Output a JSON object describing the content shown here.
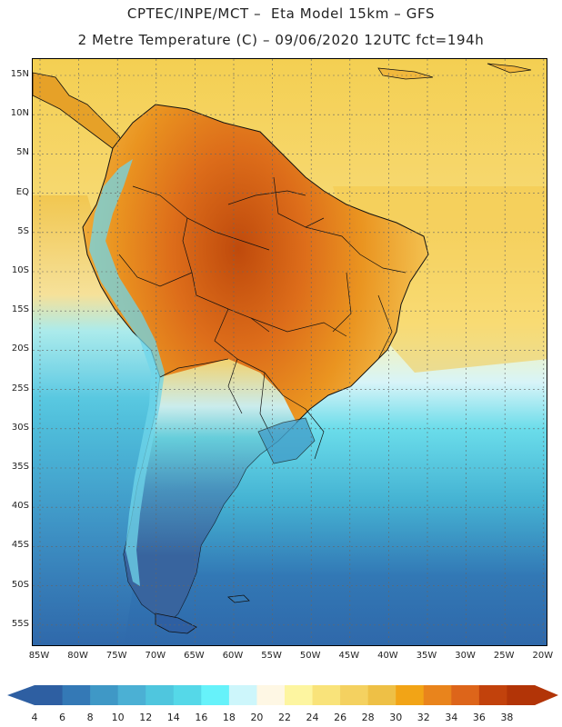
{
  "title": {
    "line1": "CPTEC/INPE/MCT –  Eta Model 15km – GFS",
    "line2": "2 Metre Temperature (C) – 09/06/2020 12UTC fct=194h"
  },
  "map": {
    "lat_labels": [
      "15N",
      "10N",
      "5N",
      "EQ",
      "5S",
      "10S",
      "15S",
      "20S",
      "25S",
      "30S",
      "35S",
      "40S",
      "45S",
      "50S",
      "55S"
    ],
    "lon_labels": [
      "85W",
      "80W",
      "75W",
      "70W",
      "65W",
      "60W",
      "55W",
      "50W",
      "45W",
      "40W",
      "35W",
      "30W",
      "25W",
      "20W"
    ],
    "colors": {
      "ocean_cold": "#2f6fae",
      "ocean_mid": "#47b5d4",
      "ocean_warm_tropical": "#f4d160",
      "land_hot": "#d9701b",
      "border_line": "#111111",
      "grid_line": "#666666"
    }
  },
  "colorbar": {
    "labels": [
      "4",
      "6",
      "8",
      "10",
      "12",
      "14",
      "16",
      "18",
      "20",
      "22",
      "24",
      "26",
      "28",
      "30",
      "32",
      "34",
      "36",
      "38"
    ],
    "colors": [
      "#2e5fa2",
      "#3479b6",
      "#3f98c6",
      "#4bb0d4",
      "#4fc6de",
      "#55d8e8",
      "#66f2fa",
      "#cdf6fb",
      "#fef7e4",
      "#fdf5a0",
      "#f9e37a",
      "#f4d160",
      "#eec046",
      "#f2a416",
      "#e9841c",
      "#dd651a",
      "#c2420c",
      "#b23407"
    ]
  }
}
